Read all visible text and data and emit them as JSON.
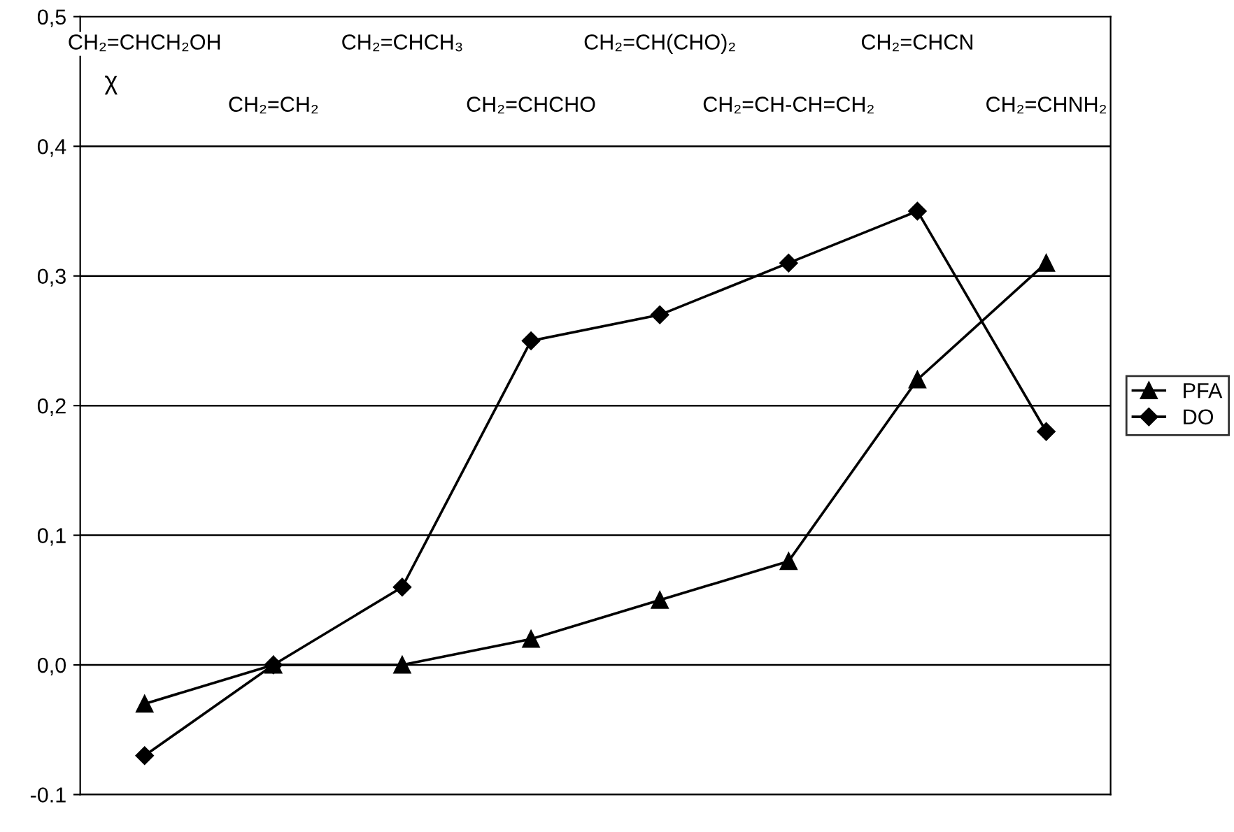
{
  "chart_data": {
    "type": "line",
    "ylabel": "χ",
    "categories": [
      "CH₂=CHCH₂OH",
      "CH₂=CH₂",
      "CH₂=CHCH₃",
      "CH₂=CHCHO",
      "CH₂=CH(CHO)₂",
      "CH₂=CH-CH=CH₂",
      "CH₂=CHCN",
      "CH₂=CHNH₂"
    ],
    "series": [
      {
        "name": "PFA",
        "color": "#000000",
        "marker": "triangle",
        "values": [
          -0.03,
          0.0,
          0.0,
          0.02,
          0.05,
          0.08,
          0.22,
          0.31
        ]
      },
      {
        "name": "DO",
        "color": "#000000",
        "marker": "diamond",
        "values": [
          -0.07,
          0.0,
          0.06,
          0.25,
          0.27,
          0.31,
          0.35,
          0.18
        ]
      }
    ],
    "ylim": [
      -0.1,
      0.5
    ],
    "yticks": [
      {
        "value": -0.1,
        "label": "-0.1"
      },
      {
        "value": 0.0,
        "label": "0,0"
      },
      {
        "value": 0.1,
        "label": "0,1"
      },
      {
        "value": 0.2,
        "label": "0,2"
      },
      {
        "value": 0.3,
        "label": "0,3"
      },
      {
        "value": 0.4,
        "label": "0,4"
      },
      {
        "value": 0.5,
        "label": "0,5"
      }
    ],
    "grid": "y",
    "legend": "right",
    "tick_labels": "y",
    "line_style": "solid"
  }
}
